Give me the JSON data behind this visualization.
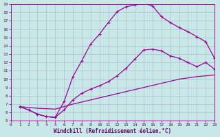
{
  "xlabel": "Windchill (Refroidissement éolien,°C)",
  "line_color": "#990099",
  "bg_color": "#c8e8e8",
  "grid_color": "#b0bbd0",
  "xlim": [
    0,
    23
  ],
  "ylim": [
    5,
    19
  ],
  "xticks": [
    0,
    1,
    2,
    3,
    4,
    5,
    6,
    7,
    8,
    9,
    10,
    11,
    12,
    13,
    14,
    15,
    16,
    17,
    18,
    19,
    20,
    21,
    22,
    23
  ],
  "yticks": [
    5,
    6,
    7,
    8,
    9,
    10,
    11,
    12,
    13,
    14,
    15,
    16,
    17,
    18,
    19
  ],
  "curve1_x": [
    1,
    2,
    3,
    4,
    5,
    6,
    7,
    8,
    9,
    10,
    11,
    12,
    13,
    14,
    15,
    16,
    17,
    18,
    19,
    20,
    21,
    22,
    23
  ],
  "curve1_y": [
    6.7,
    6.3,
    5.8,
    5.5,
    5.4,
    7.3,
    10.3,
    12.2,
    14.2,
    15.4,
    16.8,
    18.1,
    18.7,
    18.9,
    19.1,
    18.8,
    17.5,
    16.8,
    16.2,
    15.7,
    15.1,
    14.5,
    12.5
  ],
  "curve2_x": [
    1,
    2,
    3,
    4,
    5,
    6,
    7,
    8,
    9,
    10,
    11,
    12,
    13,
    14,
    15,
    16,
    17,
    18,
    19,
    20,
    21,
    22,
    23
  ],
  "curve2_y": [
    6.7,
    6.3,
    5.8,
    5.5,
    5.4,
    6.3,
    7.5,
    8.3,
    8.8,
    9.2,
    9.7,
    10.4,
    11.3,
    12.4,
    13.5,
    13.6,
    13.4,
    12.8,
    12.5,
    12.0,
    11.5,
    12.0,
    11.2
  ],
  "curve3_x": [
    1,
    3,
    5,
    7,
    9,
    11,
    13,
    15,
    17,
    19,
    21,
    23
  ],
  "curve3_y": [
    6.7,
    6.5,
    6.4,
    7.0,
    7.5,
    8.0,
    8.5,
    9.0,
    9.5,
    10.0,
    10.3,
    10.5
  ]
}
